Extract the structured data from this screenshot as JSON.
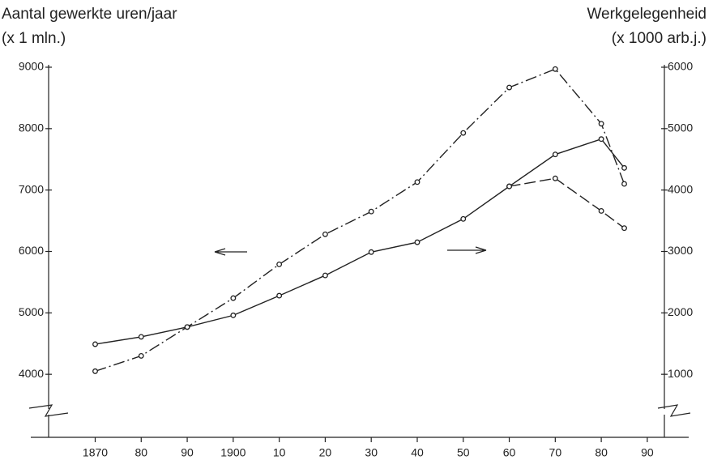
{
  "chart_data": {
    "type": "line",
    "ylabel": [
      "Aantal gewerkte uren/jaar",
      "(x 1 mln.)"
    ],
    "y2label": [
      "Werkgelegenheid",
      "(x 1000 arb.j.)"
    ],
    "x": [
      1870,
      1880,
      1890,
      1900,
      1910,
      1920,
      1930,
      1940,
      1950,
      1960,
      1970,
      1980,
      1985
    ],
    "series": [
      {
        "color": "#222222",
        "dash": "dash-dot",
        "axis": "y",
        "values": [
          4050,
          4300,
          4770,
          5240,
          5790,
          6280,
          6650,
          7130,
          7930,
          8670,
          8970,
          8080,
          7100
        ]
      },
      {
        "color": "#222222",
        "dash": "solid",
        "axis": "y2",
        "values": [
          1490,
          1610,
          1770,
          1960,
          2280,
          2610,
          2990,
          3150,
          3530,
          4060,
          4580,
          4830,
          4360
        ]
      },
      {
        "color": "#222222",
        "dash": "dashed",
        "axis": "y2",
        "values": [
          null,
          null,
          null,
          null,
          null,
          null,
          null,
          null,
          null,
          4060,
          4190,
          3660,
          3380
        ]
      }
    ],
    "xlim": [
      1856,
      1999
    ],
    "xticks": [
      1870,
      {
        "value": 1880,
        "label": "80"
      },
      {
        "value": 1890,
        "label": "90"
      },
      1900,
      {
        "value": 1910,
        "label": "10"
      },
      {
        "value": 1920,
        "label": "20"
      },
      {
        "value": 1930,
        "label": "30"
      },
      {
        "value": 1940,
        "label": "40"
      },
      {
        "value": 1950,
        "label": "50"
      },
      {
        "value": 1960,
        "label": "60"
      },
      {
        "value": 1970,
        "label": "70"
      },
      {
        "value": 1980,
        "label": "80"
      },
      {
        "value": 1990,
        "label": "90"
      }
    ],
    "ylim": [
      3000,
      9000
    ],
    "yticks": [
      4000,
      5000,
      6000,
      7000,
      8000,
      9000
    ],
    "y2lim": [
      0,
      6000
    ],
    "y2ticks": [
      1000,
      2000,
      3000,
      4000,
      5000,
      6000
    ],
    "grid": false
  }
}
